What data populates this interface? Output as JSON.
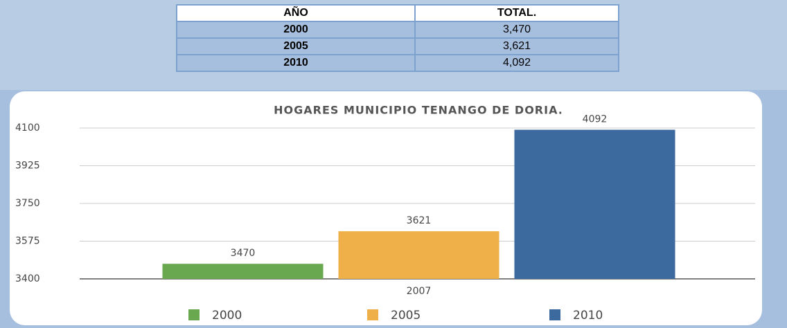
{
  "table": {
    "header": [
      "AÑO",
      "TOTAL."
    ],
    "rows": [
      [
        "2000",
        "3,470"
      ],
      [
        "2005",
        "3,621"
      ],
      [
        "2010",
        "4,092"
      ]
    ]
  },
  "chart_data": {
    "type": "bar",
    "title": "HOGARES MUNICIPIO TENANGO DE DORIA.",
    "categories": [
      "2007"
    ],
    "series": [
      {
        "name": "2000",
        "color": "#6aa84f",
        "values": [
          3470
        ]
      },
      {
        "name": "2005",
        "color": "#efb04a",
        "values": [
          3621
        ]
      },
      {
        "name": "2010",
        "color": "#3d6a9e",
        "values": [
          4092
        ]
      }
    ],
    "ylim": [
      3400,
      4100
    ],
    "yticks": [
      3400,
      3575,
      3750,
      3925,
      4100
    ],
    "grid": true,
    "legend": "bottom"
  }
}
